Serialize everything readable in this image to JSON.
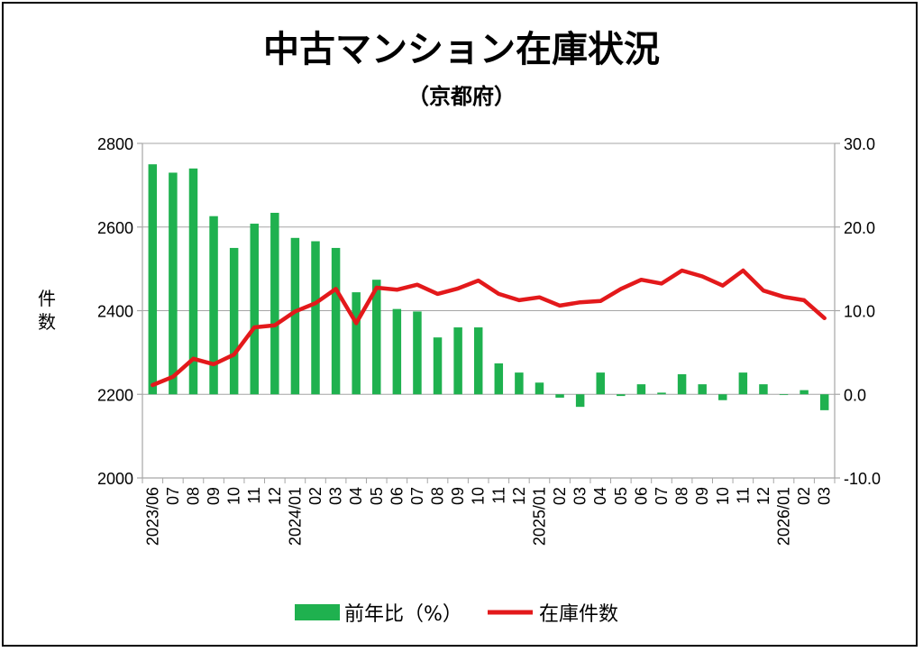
{
  "chart_data": {
    "type": "bar",
    "title": "中古マンション在庫状況",
    "subtitle": "（京都府）",
    "ylabel_left": "件数",
    "ylim_left": [
      2000,
      2800
    ],
    "yticks_left": [
      "2800",
      "2600",
      "2400",
      "2200",
      "2000"
    ],
    "ylim_right": [
      -10,
      30
    ],
    "yticks_right": [
      "30.0",
      "20.0",
      "10.0",
      "0.0",
      "-10.0"
    ],
    "grid": true,
    "legend_position": "bottom",
    "categories": [
      "2023/06",
      "07",
      "08",
      "09",
      "10",
      "11",
      "12",
      "2024/01",
      "02",
      "03",
      "04",
      "05",
      "06",
      "07",
      "08",
      "09",
      "10",
      "11",
      "12",
      "2025/01",
      "02",
      "03",
      "04",
      "05",
      "06",
      "07",
      "08",
      "09",
      "10",
      "11",
      "12",
      "2026/01",
      "02",
      "03"
    ],
    "series": [
      {
        "name": "前年比(%)",
        "kind": "bar",
        "axis": "right",
        "color": "#1fb14f",
        "values": [
          27.5,
          26.5,
          27.0,
          21.3,
          17.5,
          20.4,
          21.7,
          18.7,
          18.3,
          17.5,
          12.2,
          13.7,
          10.2,
          9.9,
          6.8,
          8.0,
          8.0,
          3.7,
          2.6,
          1.4,
          -0.4,
          -1.5,
          2.6,
          -0.2,
          1.2,
          0.2,
          2.4,
          1.2,
          -0.7,
          2.6,
          1.2,
          0.0,
          0.5,
          -1.9
        ]
      },
      {
        "name": "在庫件数",
        "kind": "line",
        "axis": "left",
        "color": "#e3191b",
        "values": [
          2222,
          2242,
          2285,
          2272,
          2295,
          2360,
          2365,
          2398,
          2418,
          2452,
          2370,
          2455,
          2450,
          2462,
          2440,
          2453,
          2472,
          2440,
          2425,
          2432,
          2412,
          2420,
          2423,
          2452,
          2474,
          2465,
          2496,
          2482,
          2460,
          2496,
          2448,
          2433,
          2425,
          2382
        ]
      }
    ]
  },
  "legend": {
    "bar_label": "前年比（%）",
    "line_label": "在庫件数"
  }
}
